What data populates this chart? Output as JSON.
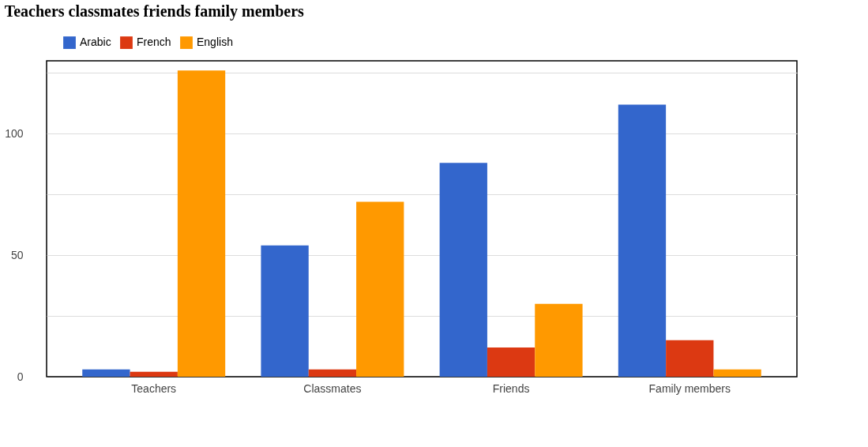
{
  "chart_data": {
    "type": "bar",
    "title": "Teachers classmates friends family members",
    "categories": [
      "Teachers",
      "Classmates",
      "Friends",
      "Family members"
    ],
    "series": [
      {
        "name": "Arabic",
        "color": "#3366cc",
        "values": [
          3,
          54,
          88,
          112
        ]
      },
      {
        "name": "French",
        "color": "#dc3912",
        "values": [
          2,
          3,
          12,
          15
        ]
      },
      {
        "name": "English",
        "color": "#ff9900",
        "values": [
          126,
          72,
          30,
          3
        ]
      }
    ],
    "ylim": [
      0,
      130
    ],
    "yticks": [
      0,
      {
        "value": 25,
        "label": null
      },
      50,
      {
        "value": 75,
        "label": null
      },
      100,
      {
        "value": 125,
        "label": null
      }
    ],
    "grid": "y",
    "legend": "top left"
  }
}
